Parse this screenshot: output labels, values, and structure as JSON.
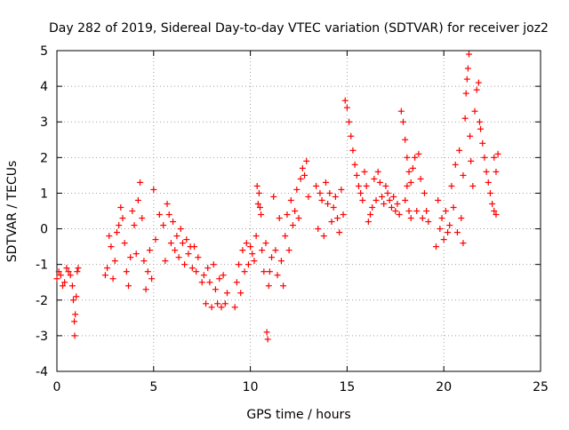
{
  "chart_data": {
    "type": "scatter",
    "title": "Day 282 of 2019, Sidereal Day-to-day VTEC variation (SDTVAR) for receiver joz2",
    "xlabel": "GPS time / hours",
    "ylabel": "SDTVAR / TECUs",
    "xlim": [
      0,
      25
    ],
    "ylim": [
      -4,
      5
    ],
    "xticks": [
      0,
      5,
      10,
      15,
      20,
      25
    ],
    "yticks": [
      -4,
      -3,
      -2,
      -1,
      0,
      1,
      2,
      3,
      4,
      5
    ],
    "grid": true,
    "marker": "+",
    "series_color": "#ff0000",
    "series": [
      {
        "name": "SDTVAR",
        "points": [
          [
            0.0,
            -1.4
          ],
          [
            0.1,
            -1.2
          ],
          [
            0.2,
            -1.3
          ],
          [
            0.3,
            -1.6
          ],
          [
            0.4,
            -1.5
          ],
          [
            0.5,
            -1.1
          ],
          [
            0.6,
            -1.2
          ],
          [
            0.7,
            -1.3
          ],
          [
            0.8,
            -1.6
          ],
          [
            0.85,
            -2.0
          ],
          [
            0.9,
            -2.6
          ],
          [
            0.92,
            -3.0
          ],
          [
            0.95,
            -2.4
          ],
          [
            1.0,
            -1.9
          ],
          [
            1.05,
            -1.2
          ],
          [
            1.1,
            -1.1
          ],
          [
            2.5,
            -1.3
          ],
          [
            2.6,
            -1.1
          ],
          [
            2.7,
            -0.2
          ],
          [
            2.8,
            -0.5
          ],
          [
            2.9,
            -1.4
          ],
          [
            3.0,
            -0.9
          ],
          [
            3.1,
            -0.1
          ],
          [
            3.2,
            0.1
          ],
          [
            3.3,
            0.6
          ],
          [
            3.4,
            0.3
          ],
          [
            3.5,
            -0.4
          ],
          [
            3.6,
            -1.2
          ],
          [
            3.7,
            -1.6
          ],
          [
            3.8,
            -0.8
          ],
          [
            3.9,
            0.5
          ],
          [
            4.0,
            0.1
          ],
          [
            4.1,
            -0.7
          ],
          [
            4.2,
            0.8
          ],
          [
            4.3,
            1.3
          ],
          [
            4.4,
            0.3
          ],
          [
            4.5,
            -0.9
          ],
          [
            4.6,
            -1.7
          ],
          [
            4.7,
            -1.2
          ],
          [
            4.8,
            -0.6
          ],
          [
            4.9,
            -1.4
          ],
          [
            5.0,
            1.1
          ],
          [
            5.1,
            -0.3
          ],
          [
            5.3,
            0.4
          ],
          [
            5.5,
            0.1
          ],
          [
            5.6,
            -0.9
          ],
          [
            5.7,
            0.7
          ],
          [
            5.8,
            0.4
          ],
          [
            5.9,
            -0.4
          ],
          [
            6.0,
            0.2
          ],
          [
            6.1,
            -0.6
          ],
          [
            6.2,
            -0.2
          ],
          [
            6.3,
            -0.8
          ],
          [
            6.4,
            0.0
          ],
          [
            6.5,
            -0.4
          ],
          [
            6.6,
            -1.0
          ],
          [
            6.7,
            -0.3
          ],
          [
            6.8,
            -0.7
          ],
          [
            6.9,
            -0.5
          ],
          [
            7.0,
            -1.1
          ],
          [
            7.1,
            -0.5
          ],
          [
            7.2,
            -1.2
          ],
          [
            7.3,
            -0.8
          ],
          [
            7.5,
            -1.5
          ],
          [
            7.6,
            -1.3
          ],
          [
            7.7,
            -2.1
          ],
          [
            7.8,
            -1.1
          ],
          [
            7.9,
            -1.5
          ],
          [
            8.0,
            -2.2
          ],
          [
            8.1,
            -1.0
          ],
          [
            8.2,
            -1.7
          ],
          [
            8.3,
            -2.1
          ],
          [
            8.4,
            -1.4
          ],
          [
            8.5,
            -2.2
          ],
          [
            8.6,
            -1.3
          ],
          [
            8.7,
            -2.1
          ],
          [
            8.8,
            -1.8
          ],
          [
            9.2,
            -2.2
          ],
          [
            9.3,
            -1.5
          ],
          [
            9.4,
            -1.0
          ],
          [
            9.5,
            -1.8
          ],
          [
            9.6,
            -0.6
          ],
          [
            9.7,
            -1.2
          ],
          [
            9.8,
            -0.4
          ],
          [
            9.9,
            -1.0
          ],
          [
            10.0,
            -0.5
          ],
          [
            10.1,
            -0.7
          ],
          [
            10.2,
            -0.9
          ],
          [
            10.3,
            -0.2
          ],
          [
            10.35,
            1.2
          ],
          [
            10.4,
            0.7
          ],
          [
            10.45,
            1.0
          ],
          [
            10.5,
            0.6
          ],
          [
            10.55,
            0.4
          ],
          [
            10.6,
            -0.6
          ],
          [
            10.7,
            -1.2
          ],
          [
            10.8,
            -0.4
          ],
          [
            10.85,
            -2.9
          ],
          [
            10.9,
            -3.1
          ],
          [
            10.95,
            -1.6
          ],
          [
            11.0,
            -1.2
          ],
          [
            11.1,
            -0.8
          ],
          [
            11.2,
            0.9
          ],
          [
            11.3,
            -0.6
          ],
          [
            11.4,
            -1.3
          ],
          [
            11.5,
            0.3
          ],
          [
            11.6,
            -0.9
          ],
          [
            11.7,
            -1.6
          ],
          [
            11.8,
            -0.2
          ],
          [
            11.9,
            0.4
          ],
          [
            12.0,
            -0.6
          ],
          [
            12.1,
            0.8
          ],
          [
            12.2,
            0.1
          ],
          [
            12.3,
            0.5
          ],
          [
            12.4,
            1.1
          ],
          [
            12.5,
            0.3
          ],
          [
            12.6,
            1.4
          ],
          [
            12.7,
            1.7
          ],
          [
            12.8,
            1.5
          ],
          [
            12.9,
            1.9
          ],
          [
            13.0,
            0.9
          ],
          [
            13.4,
            1.2
          ],
          [
            13.5,
            0.0
          ],
          [
            13.6,
            1.0
          ],
          [
            13.7,
            0.8
          ],
          [
            13.8,
            -0.2
          ],
          [
            13.9,
            1.3
          ],
          [
            14.0,
            0.7
          ],
          [
            14.1,
            1.0
          ],
          [
            14.2,
            0.2
          ],
          [
            14.3,
            0.6
          ],
          [
            14.4,
            0.9
          ],
          [
            14.5,
            0.3
          ],
          [
            14.6,
            -0.1
          ],
          [
            14.7,
            1.1
          ],
          [
            14.8,
            0.4
          ],
          [
            14.9,
            3.6
          ],
          [
            15.0,
            3.4
          ],
          [
            15.1,
            3.0
          ],
          [
            15.2,
            2.6
          ],
          [
            15.3,
            2.2
          ],
          [
            15.4,
            1.8
          ],
          [
            15.5,
            1.5
          ],
          [
            15.6,
            1.2
          ],
          [
            15.7,
            1.0
          ],
          [
            15.8,
            0.8
          ],
          [
            15.9,
            1.6
          ],
          [
            16.0,
            1.2
          ],
          [
            16.1,
            0.2
          ],
          [
            16.2,
            0.4
          ],
          [
            16.3,
            0.6
          ],
          [
            16.4,
            1.4
          ],
          [
            16.5,
            0.8
          ],
          [
            16.6,
            1.6
          ],
          [
            16.7,
            1.3
          ],
          [
            16.8,
            0.9
          ],
          [
            16.9,
            0.7
          ],
          [
            17.0,
            1.2
          ],
          [
            17.1,
            1.0
          ],
          [
            17.2,
            0.8
          ],
          [
            17.3,
            0.6
          ],
          [
            17.4,
            0.9
          ],
          [
            17.5,
            0.5
          ],
          [
            17.6,
            0.7
          ],
          [
            17.7,
            0.4
          ],
          [
            17.8,
            3.3
          ],
          [
            17.9,
            3.0
          ],
          [
            18.0,
            2.5
          ],
          [
            18.1,
            2.0
          ],
          [
            18.2,
            1.6
          ],
          [
            18.3,
            1.3
          ],
          [
            18.0,
            0.8
          ],
          [
            18.1,
            1.2
          ],
          [
            18.2,
            0.5
          ],
          [
            18.3,
            0.3
          ],
          [
            18.4,
            1.7
          ],
          [
            18.5,
            2.0
          ],
          [
            18.6,
            0.5
          ],
          [
            18.7,
            2.1
          ],
          [
            18.8,
            1.4
          ],
          [
            18.9,
            0.3
          ],
          [
            19.0,
            1.0
          ],
          [
            19.1,
            0.5
          ],
          [
            19.2,
            0.2
          ],
          [
            19.6,
            -0.5
          ],
          [
            19.7,
            0.8
          ],
          [
            19.8,
            0.0
          ],
          [
            19.9,
            0.3
          ],
          [
            20.0,
            -0.3
          ],
          [
            20.1,
            0.5
          ],
          [
            20.2,
            -0.1
          ],
          [
            20.3,
            0.1
          ],
          [
            20.4,
            1.2
          ],
          [
            20.5,
            0.6
          ],
          [
            20.6,
            1.8
          ],
          [
            20.7,
            -0.1
          ],
          [
            20.8,
            2.2
          ],
          [
            20.9,
            0.3
          ],
          [
            21.0,
            1.5
          ],
          [
            21.0,
            -0.4
          ],
          [
            21.1,
            3.1
          ],
          [
            21.15,
            3.8
          ],
          [
            21.2,
            4.2
          ],
          [
            21.25,
            4.5
          ],
          [
            21.3,
            4.9
          ],
          [
            21.35,
            2.6
          ],
          [
            21.4,
            1.9
          ],
          [
            21.5,
            1.2
          ],
          [
            21.6,
            3.3
          ],
          [
            21.7,
            3.9
          ],
          [
            21.8,
            4.1
          ],
          [
            21.85,
            3.0
          ],
          [
            21.9,
            2.8
          ],
          [
            22.0,
            2.4
          ],
          [
            22.1,
            2.0
          ],
          [
            22.2,
            1.6
          ],
          [
            22.3,
            1.3
          ],
          [
            22.4,
            1.0
          ],
          [
            22.5,
            0.7
          ],
          [
            22.6,
            2.0
          ],
          [
            22.7,
            1.6
          ],
          [
            22.8,
            2.1
          ],
          [
            22.6,
            0.5
          ],
          [
            22.7,
            0.4
          ]
        ]
      }
    ]
  }
}
